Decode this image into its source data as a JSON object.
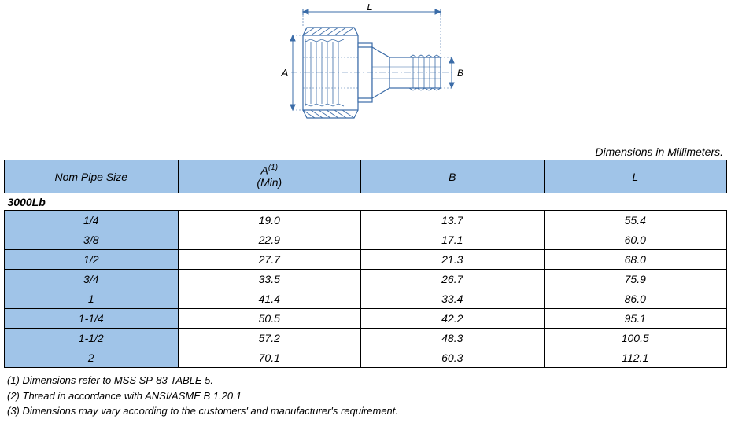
{
  "diagram": {
    "labels": {
      "L": "L",
      "A": "A",
      "B": "B"
    },
    "stroke": "#3b6ca8",
    "fill": "#ffffff"
  },
  "units_label": "Dimensions in Millimeters.",
  "headers": {
    "nom": "Nom Pipe Size",
    "a_main": "A",
    "a_sup": "(1)",
    "a_sub": "(Min)",
    "b": "B",
    "l": "L"
  },
  "section_label": "3000Lb",
  "rows": [
    {
      "size": "1/4",
      "a": "19.0",
      "b": "13.7",
      "l": "55.4"
    },
    {
      "size": "3/8",
      "a": "22.9",
      "b": "17.1",
      "l": "60.0"
    },
    {
      "size": "1/2",
      "a": "27.7",
      "b": "21.3",
      "l": "68.0"
    },
    {
      "size": "3/4",
      "a": "33.5",
      "b": "26.7",
      "l": "75.9"
    },
    {
      "size": "1",
      "a": "41.4",
      "b": "33.4",
      "l": "86.0"
    },
    {
      "size": "1-1/4",
      "a": "50.5",
      "b": "42.2",
      "l": "95.1"
    },
    {
      "size": "1-1/2",
      "a": "57.2",
      "b": "48.3",
      "l": "100.5"
    },
    {
      "size": "2",
      "a": "70.1",
      "b": "60.3",
      "l": "112.1"
    }
  ],
  "notes": [
    "(1)  Dimensions refer to MSS   SP-83 TABLE 5.",
    "(2)  Thread in accordance with ANSI/ASME B 1.20.1",
    "(3)  Dimensions may vary according to the customers' and manufacturer's requirement."
  ],
  "colors": {
    "header_bg": "#a0c4e8",
    "border": "#000000",
    "text": "#000000",
    "diagram_stroke": "#3b6ca8"
  }
}
